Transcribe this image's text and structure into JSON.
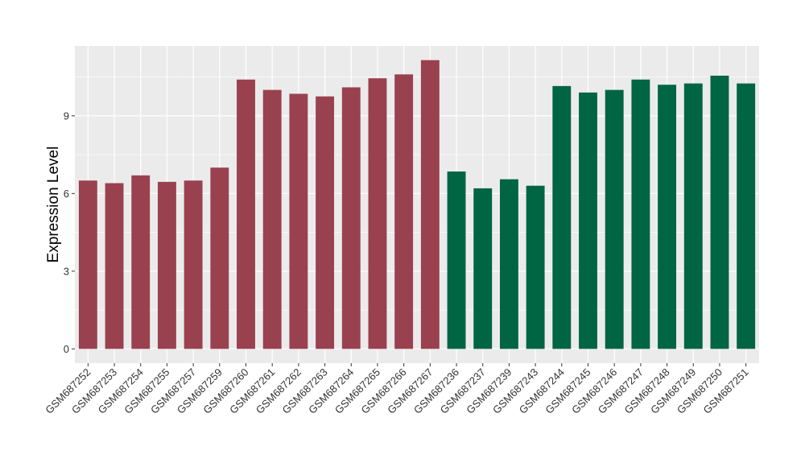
{
  "chart_data": {
    "type": "bar",
    "title": "",
    "xlabel": "",
    "ylabel": "Expression Level",
    "ylim": [
      -0.55,
      11.7
    ],
    "yticks": [
      0,
      3,
      6,
      9
    ],
    "grid": true,
    "legend": "none",
    "categories": [
      "GSM687252",
      "GSM687253",
      "GSM687254",
      "GSM687255",
      "GSM687257",
      "GSM687259",
      "GSM687260",
      "GSM687261",
      "GSM687262",
      "GSM687263",
      "GSM687264",
      "GSM687265",
      "GSM687266",
      "GSM687267",
      "GSM687236",
      "GSM687237",
      "GSM687239",
      "GSM687243",
      "GSM687244",
      "GSM687245",
      "GSM687246",
      "GSM687247",
      "GSM687248",
      "GSM687249",
      "GSM687250",
      "GSM687251"
    ],
    "values": [
      6.5,
      6.4,
      6.7,
      6.45,
      6.5,
      7.0,
      10.4,
      10.0,
      9.85,
      9.75,
      10.1,
      10.45,
      10.6,
      11.15,
      6.85,
      6.2,
      6.55,
      6.3,
      10.15,
      9.9,
      10.0,
      10.4,
      10.2,
      10.25,
      10.55,
      10.25
    ],
    "groups": [
      0,
      0,
      0,
      0,
      0,
      0,
      0,
      0,
      0,
      0,
      0,
      0,
      0,
      0,
      1,
      1,
      1,
      1,
      1,
      1,
      1,
      1,
      1,
      1,
      1,
      1
    ],
    "colors": [
      "#9a4150",
      "#006543"
    ],
    "panel_color": "#ebebeb",
    "grid_color": "#ffffff"
  }
}
